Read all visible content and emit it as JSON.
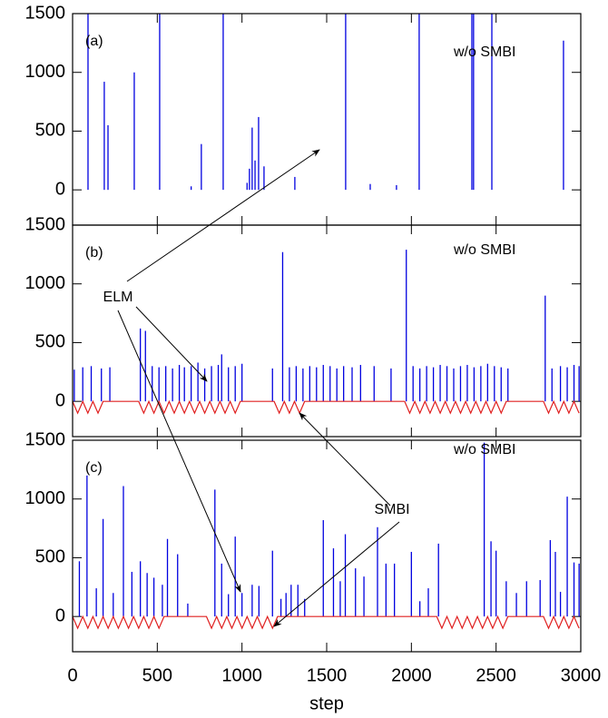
{
  "chart_data": [
    {
      "type": "spike",
      "panel_label": "(a)",
      "note": "w/o SMBI",
      "xlim": [
        0,
        3000
      ],
      "ylim": [
        -300,
        1500
      ],
      "yticks": [
        0,
        500,
        1000,
        1500
      ],
      "series": [
        {
          "style": "stem",
          "color": "#0000e0",
          "x": [
            91,
            187,
            209,
            364,
            514,
            700,
            760,
            889,
            1030,
            1044,
            1060,
            1077,
            1098,
            1130,
            1312,
            1612,
            1757,
            1912,
            2046,
            2357,
            2367,
            2475,
            2898
          ],
          "values": [
            1500,
            920,
            550,
            1000,
            1500,
            30,
            390,
            1500,
            60,
            180,
            530,
            250,
            620,
            200,
            110,
            1500,
            50,
            40,
            1500,
            1500,
            1500,
            1500,
            1270
          ]
        }
      ]
    },
    {
      "type": "spike",
      "panel_label": "(b)",
      "note": "w/o SMBI",
      "annotation": "ELM",
      "xlim": [
        0,
        3000
      ],
      "ylim": [
        -300,
        1500
      ],
      "yticks": [
        0,
        500,
        1000,
        1500
      ],
      "series": [
        {
          "style": "stem",
          "color": "#0000e0",
          "x": [
            10,
            60,
            110,
            170,
            220,
            400,
            430,
            470,
            510,
            550,
            590,
            630,
            660,
            700,
            740,
            780,
            820,
            860,
            880,
            920,
            960,
            1000,
            1180,
            1240,
            1280,
            1320,
            1360,
            1400,
            1440,
            1480,
            1520,
            1560,
            1600,
            1650,
            1700,
            1780,
            1880,
            1970,
            2010,
            2050,
            2090,
            2130,
            2170,
            2210,
            2250,
            2290,
            2330,
            2370,
            2410,
            2450,
            2490,
            2530,
            2570,
            2790,
            2830,
            2880,
            2920,
            2960,
            2990
          ],
          "values": [
            270,
            290,
            300,
            280,
            290,
            620,
            600,
            300,
            290,
            300,
            280,
            310,
            290,
            300,
            330,
            280,
            300,
            310,
            400,
            290,
            300,
            320,
            280,
            1270,
            290,
            300,
            280,
            300,
            290,
            310,
            300,
            280,
            300,
            290,
            310,
            300,
            280,
            1290,
            300,
            280,
            300,
            290,
            310,
            300,
            280,
            300,
            310,
            290,
            300,
            320,
            300,
            290,
            280,
            900,
            280,
            300,
            290,
            310,
            300
          ]
        },
        {
          "style": "line",
          "color": "#e02020",
          "x": [
            0,
            30,
            60,
            90,
            120,
            150,
            180,
            390,
            420,
            450,
            480,
            510,
            540,
            570,
            600,
            630,
            660,
            690,
            720,
            750,
            780,
            810,
            840,
            870,
            900,
            930,
            960,
            990,
            1190,
            1220,
            1250,
            1280,
            1310,
            1340,
            1370,
            1960,
            1990,
            2020,
            2050,
            2080,
            2110,
            2140,
            2170,
            2200,
            2230,
            2260,
            2290,
            2320,
            2350,
            2380,
            2410,
            2440,
            2470,
            2500,
            2530,
            2560,
            2780,
            2810,
            2840,
            2870,
            2900,
            2930,
            2960,
            2990
          ],
          "values": [
            0,
            -100,
            0,
            -100,
            0,
            -100,
            0,
            0,
            -100,
            0,
            -100,
            0,
            -100,
            0,
            -100,
            0,
            -100,
            0,
            -100,
            0,
            -100,
            0,
            -100,
            0,
            -100,
            0,
            -100,
            0,
            0,
            -100,
            0,
            -100,
            0,
            -100,
            0,
            0,
            -100,
            0,
            -100,
            0,
            -100,
            0,
            -100,
            0,
            -100,
            0,
            -100,
            0,
            -100,
            0,
            -100,
            0,
            -100,
            0,
            -100,
            0,
            0,
            -100,
            0,
            -100,
            0,
            -100,
            0,
            -100
          ]
        }
      ]
    },
    {
      "type": "spike",
      "panel_label": "(c)",
      "note": "w/o SMBI",
      "annotation": "SMBI",
      "xlim": [
        0,
        3000
      ],
      "xticks": [
        0,
        500,
        1000,
        1500,
        2000,
        2500,
        3000
      ],
      "xlabel": "step",
      "ylim": [
        -300,
        1500
      ],
      "yticks": [
        0,
        500,
        1000,
        1500
      ],
      "series": [
        {
          "style": "stem",
          "color": "#0000e0",
          "x": [
            40,
            85,
            140,
            180,
            240,
            300,
            350,
            400,
            440,
            480,
            530,
            560,
            620,
            680,
            840,
            880,
            920,
            960,
            1000,
            1060,
            1100,
            1180,
            1230,
            1260,
            1290,
            1330,
            1370,
            1480,
            1540,
            1580,
            1610,
            1670,
            1720,
            1800,
            1850,
            1900,
            2000,
            2050,
            2100,
            2160,
            2430,
            2470,
            2500,
            2560,
            2620,
            2680,
            2760,
            2820,
            2850,
            2880,
            2920,
            2960,
            2990
          ],
          "values": [
            470,
            1200,
            240,
            830,
            200,
            1110,
            380,
            470,
            370,
            330,
            270,
            660,
            530,
            110,
            1080,
            450,
            190,
            680,
            200,
            270,
            260,
            560,
            150,
            200,
            270,
            270,
            150,
            820,
            580,
            300,
            700,
            410,
            340,
            760,
            450,
            450,
            550,
            130,
            240,
            620,
            1480,
            640,
            560,
            300,
            200,
            300,
            310,
            650,
            550,
            210,
            1020,
            460,
            450
          ]
        },
        {
          "style": "line",
          "color": "#e02020",
          "x": [
            0,
            30,
            60,
            90,
            120,
            150,
            180,
            210,
            240,
            270,
            300,
            330,
            360,
            390,
            420,
            450,
            480,
            510,
            540,
            790,
            820,
            850,
            880,
            910,
            940,
            970,
            1000,
            1030,
            1060,
            1090,
            1120,
            1150,
            1180,
            1210,
            2150,
            2180,
            2210,
            2240,
            2270,
            2300,
            2330,
            2360,
            2390,
            2420,
            2450,
            2480,
            2510,
            2540,
            2570,
            2780,
            2810,
            2840,
            2870,
            2900,
            2930,
            2960,
            2990
          ],
          "values": [
            0,
            -100,
            0,
            -100,
            0,
            -100,
            0,
            -100,
            0,
            -100,
            0,
            -100,
            0,
            -100,
            0,
            -100,
            0,
            -100,
            0,
            0,
            -100,
            0,
            -100,
            0,
            -100,
            0,
            -100,
            0,
            -100,
            0,
            -100,
            0,
            -100,
            0,
            0,
            -100,
            0,
            -100,
            0,
            -100,
            0,
            -100,
            0,
            -100,
            0,
            -100,
            0,
            -100,
            0,
            0,
            -100,
            0,
            -100,
            0,
            -100,
            0,
            -100
          ]
        }
      ]
    }
  ]
}
